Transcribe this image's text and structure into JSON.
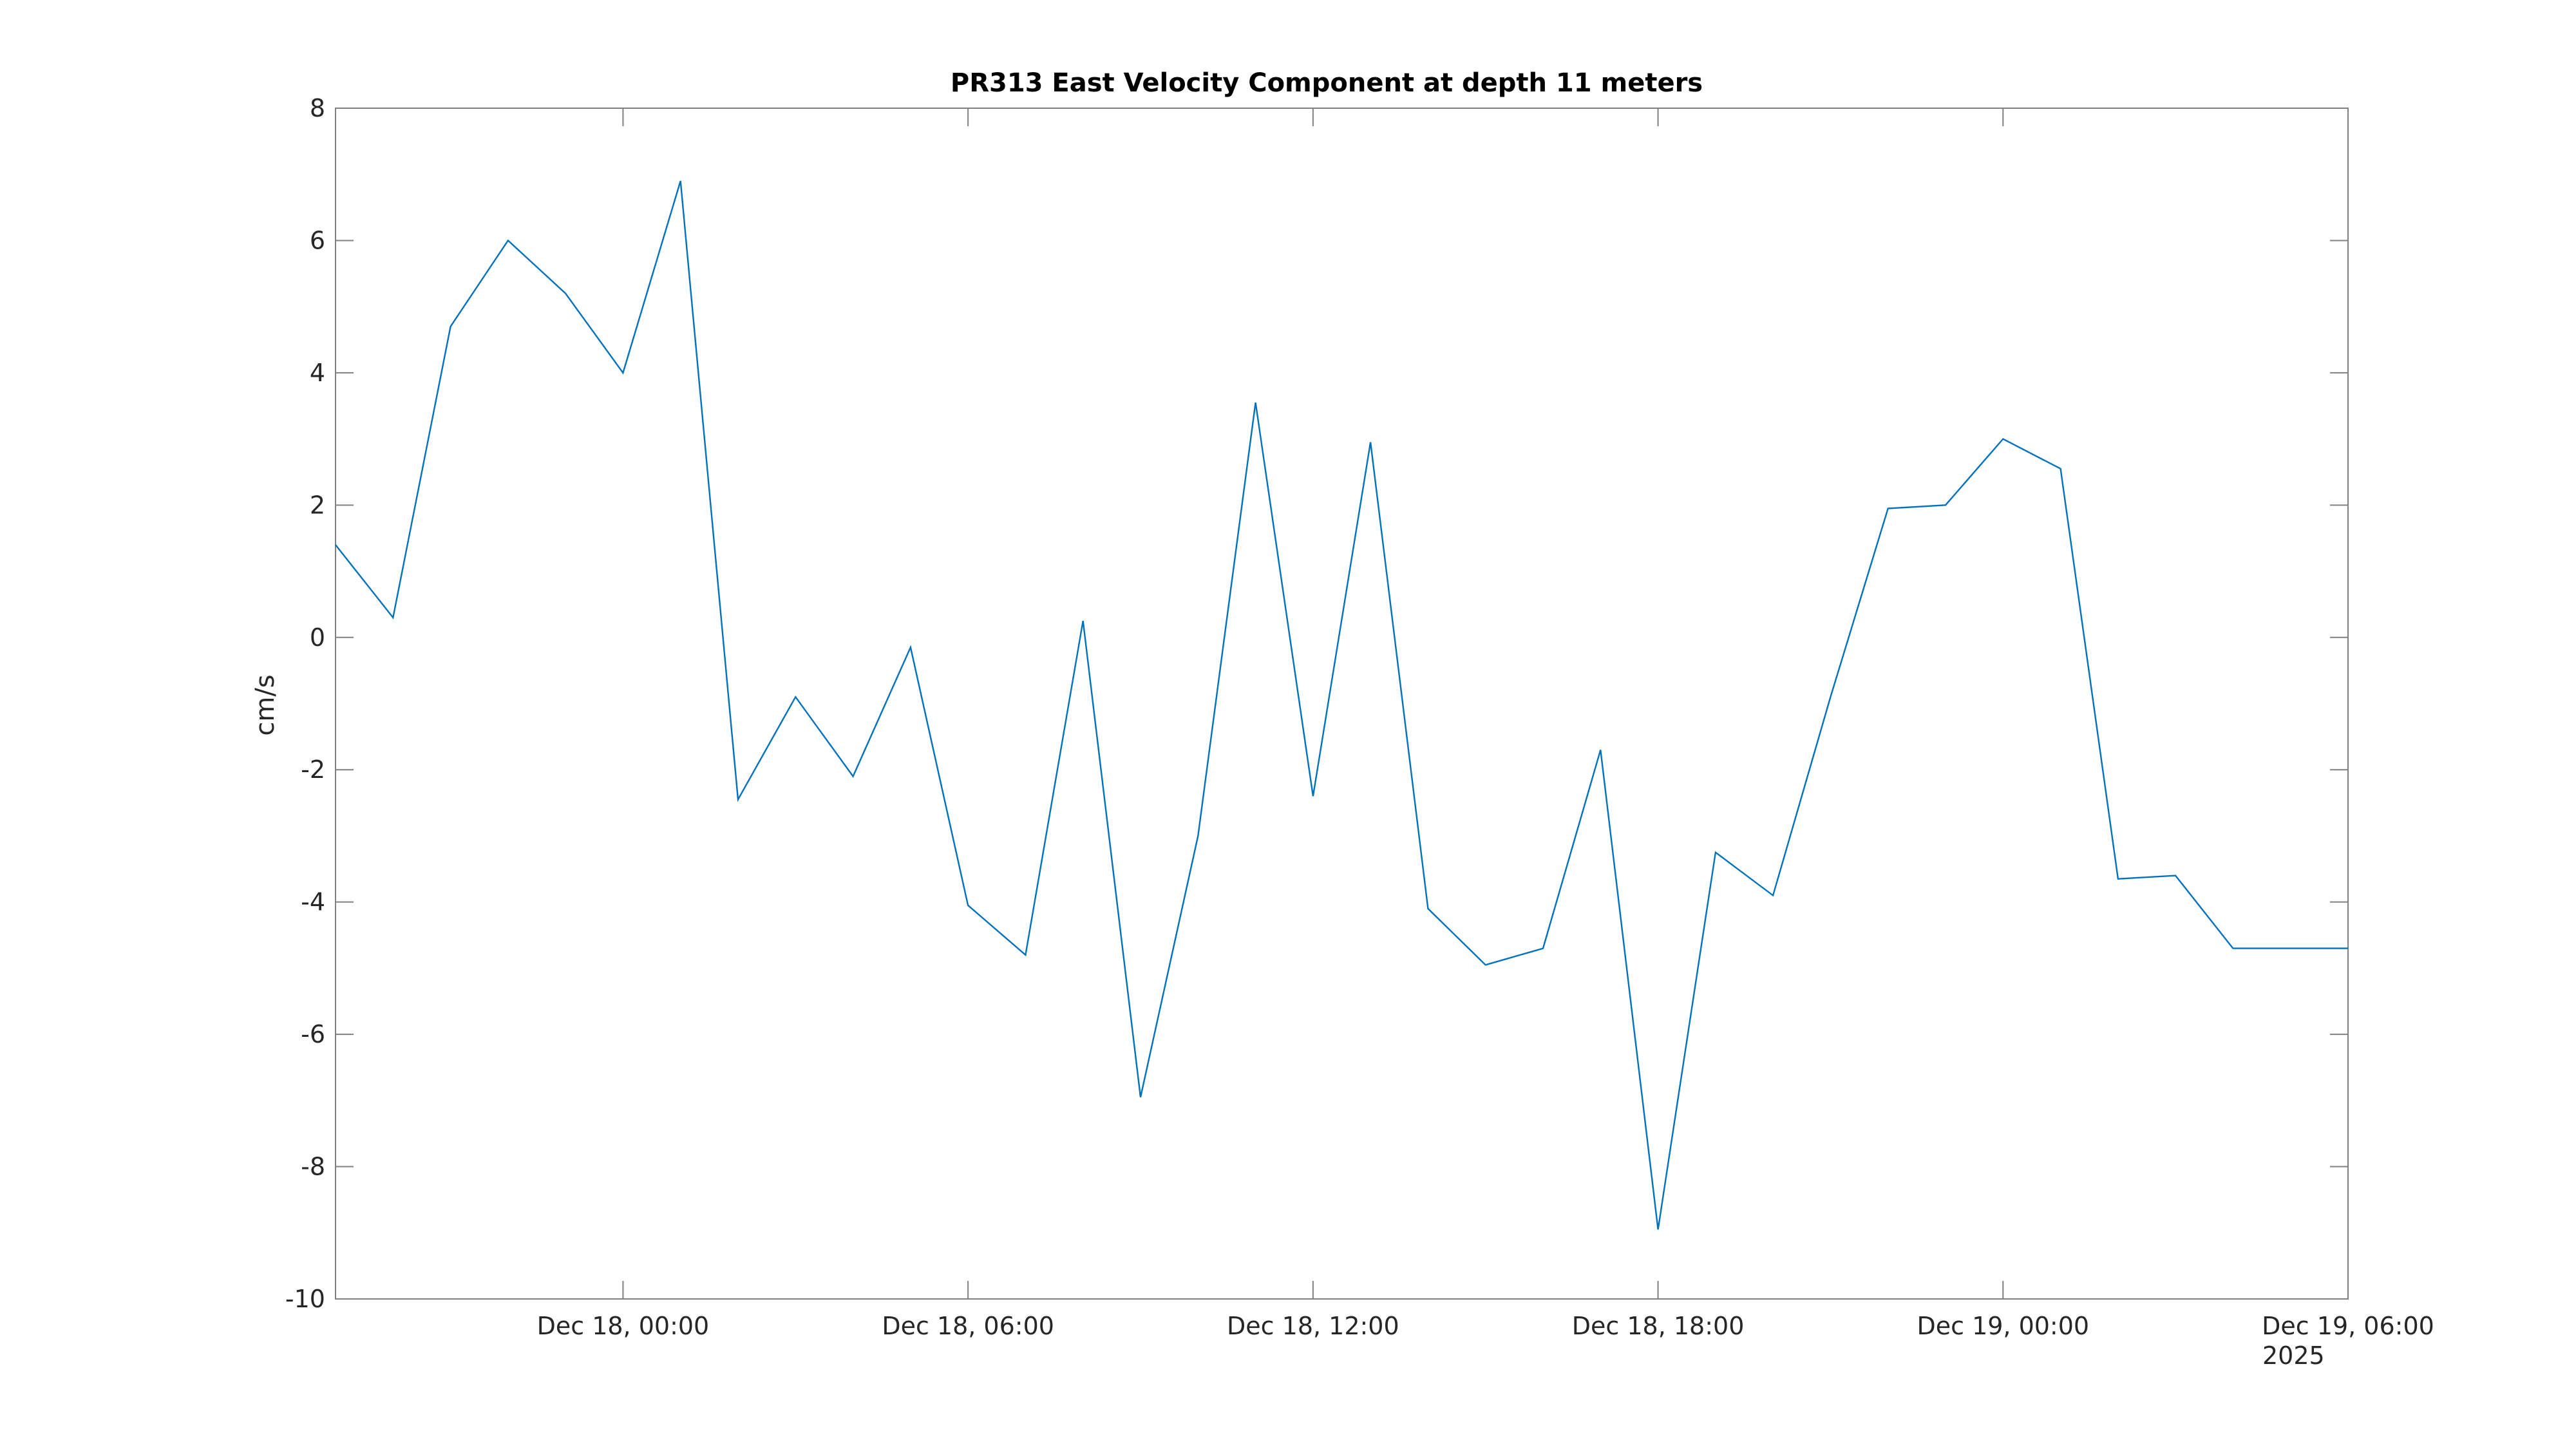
{
  "chart_data": {
    "type": "line",
    "title": "PR313 East Velocity Component at depth 11 meters",
    "xlabel": "",
    "ylabel": "cm/s",
    "xlim": [
      "2025-12-17 19:00",
      "2025-12-19 06:00"
    ],
    "ylim": [
      -10,
      8
    ],
    "grid": false,
    "legend": "none",
    "x_ticks": [
      {
        "value": "2025-12-18 00:00",
        "label": "Dec 18, 00:00"
      },
      {
        "value": "2025-12-18 06:00",
        "label": "Dec 18, 06:00"
      },
      {
        "value": "2025-12-18 12:00",
        "label": "Dec 18, 12:00"
      },
      {
        "value": "2025-12-18 18:00",
        "label": "Dec 18, 18:00"
      },
      {
        "value": "2025-12-19 00:00",
        "label": "Dec 19, 00:00"
      },
      {
        "value": "2025-12-19 06:00",
        "label": "Dec 19, 06:00"
      }
    ],
    "x_secondary_label": "2025",
    "y_ticks": [
      -10,
      -8,
      -6,
      -4,
      -2,
      0,
      2,
      4,
      6,
      8
    ],
    "series": [
      {
        "color": "#0072bd",
        "x": [
          "2025-12-17 19:00",
          "2025-12-17 20:00",
          "2025-12-17 21:00",
          "2025-12-17 22:00",
          "2025-12-17 23:00",
          "2025-12-18 00:00",
          "2025-12-18 01:00",
          "2025-12-18 02:00",
          "2025-12-18 03:00",
          "2025-12-18 04:00",
          "2025-12-18 05:00",
          "2025-12-18 06:00",
          "2025-12-18 07:00",
          "2025-12-18 08:00",
          "2025-12-18 09:00",
          "2025-12-18 10:00",
          "2025-12-18 11:00",
          "2025-12-18 12:00",
          "2025-12-18 13:00",
          "2025-12-18 14:00",
          "2025-12-18 15:00",
          "2025-12-18 16:00",
          "2025-12-18 17:00",
          "2025-12-18 18:00",
          "2025-12-18 19:00",
          "2025-12-18 20:00",
          "2025-12-18 21:00",
          "2025-12-18 22:00",
          "2025-12-18 23:00",
          "2025-12-19 00:00",
          "2025-12-19 01:00",
          "2025-12-19 02:00",
          "2025-12-19 03:00",
          "2025-12-19 04:00",
          "2025-12-19 05:00",
          "2025-12-19 06:00"
        ],
        "values": [
          1.4,
          0.3,
          4.7,
          6.0,
          5.2,
          4.0,
          6.9,
          -2.45,
          -0.9,
          -2.1,
          -0.15,
          -4.05,
          -4.8,
          0.25,
          -6.95,
          -3.0,
          3.55,
          -2.4,
          2.95,
          -4.1,
          -4.95,
          -4.7,
          -1.7,
          -8.95,
          -3.25,
          -3.9,
          -0.9,
          1.95,
          2.0,
          3.0,
          2.55,
          -3.65,
          -3.6,
          -4.7,
          -4.7,
          -4.7
        ]
      }
    ]
  }
}
